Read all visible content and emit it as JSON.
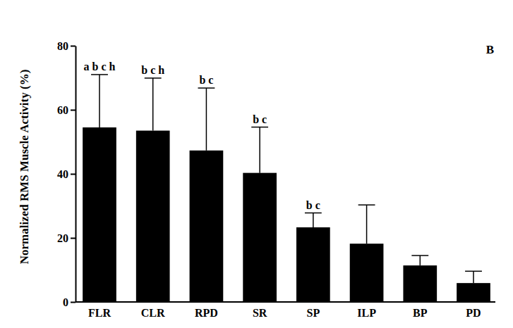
{
  "chart_data": {
    "type": "bar",
    "panel_label": "B",
    "y_label": "Normalized RMS Muscle Activity (%)",
    "categories": [
      "FLR",
      "CLR",
      "RPD",
      "SR",
      "SP",
      "ILP",
      "BP",
      "PD"
    ],
    "values": [
      54.5,
      53.5,
      47.3,
      40.3,
      23.3,
      18.2,
      11.4,
      5.9
    ],
    "errors": [
      16.5,
      16.4,
      19.5,
      14.3,
      4.5,
      12.1,
      3.1,
      3.7
    ],
    "letters": [
      "a b c h",
      "b c h",
      "b c",
      "b c",
      "b c",
      null,
      null,
      null
    ],
    "color": "#000000",
    "ylim": [
      0,
      80
    ],
    "yticks": [
      0,
      20,
      40,
      60,
      80
    ],
    "grid": false
  }
}
